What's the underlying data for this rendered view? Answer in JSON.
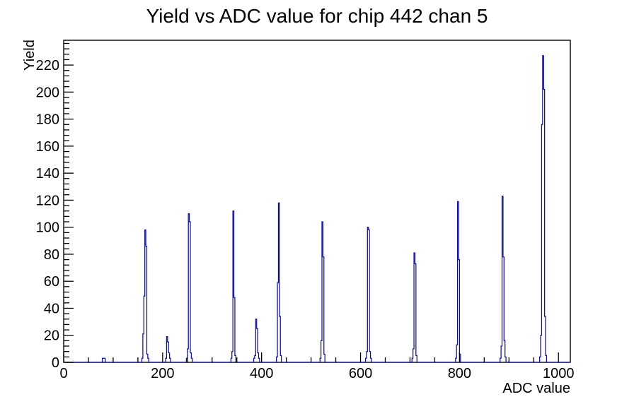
{
  "title": "Yield vs ADC value for chip 442 chan 5",
  "colors": {
    "histogram_line": "#10108e",
    "axis": "#000000",
    "background": "#ffffff",
    "text": "#000000"
  },
  "chart_data": {
    "type": "bar",
    "title": "Yield vs ADC value for chip 442 chan 5",
    "xlabel": "ADC value",
    "ylabel": "Yield",
    "xlim": [
      0,
      1024
    ],
    "ylim": [
      0,
      238.35
    ],
    "grid": false,
    "legend": false,
    "x_major_ticks": [
      0,
      200,
      400,
      600,
      800,
      1000
    ],
    "x_minor_step": 50,
    "y_major_ticks": [
      0,
      20,
      40,
      60,
      80,
      100,
      120,
      140,
      160,
      180,
      200,
      220
    ],
    "y_minor_step": 4,
    "bin_width": 2,
    "clusters": [
      {
        "start": 78,
        "heights": [
          3,
          3,
          3
        ]
      },
      {
        "start": 158,
        "heights": [
          3,
          21,
          49,
          98,
          86,
          6,
          3
        ]
      },
      {
        "start": 206,
        "heights": [
          3,
          19,
          15,
          7,
          3
        ]
      },
      {
        "start": 248,
        "heights": [
          3,
          10,
          110,
          104,
          7,
          3
        ]
      },
      {
        "start": 338,
        "heights": [
          3,
          8,
          112,
          48,
          5
        ]
      },
      {
        "start": 384,
        "heights": [
          3,
          5,
          32,
          25,
          7,
          3
        ]
      },
      {
        "start": 430,
        "heights": [
          4,
          59,
          118,
          34,
          5
        ]
      },
      {
        "start": 518,
        "heights": [
          3,
          16,
          104,
          78,
          6
        ]
      },
      {
        "start": 610,
        "heights": [
          3,
          8,
          100,
          98,
          8,
          3
        ]
      },
      {
        "start": 704,
        "heights": [
          3,
          10,
          81,
          73,
          5
        ]
      },
      {
        "start": 792,
        "heights": [
          3,
          13,
          119,
          76,
          6
        ]
      },
      {
        "start": 882,
        "heights": [
          3,
          12,
          123,
          78,
          16,
          4
        ]
      },
      {
        "start": 962,
        "heights": [
          4,
          20,
          176,
          227,
          202,
          34,
          5
        ]
      }
    ]
  }
}
